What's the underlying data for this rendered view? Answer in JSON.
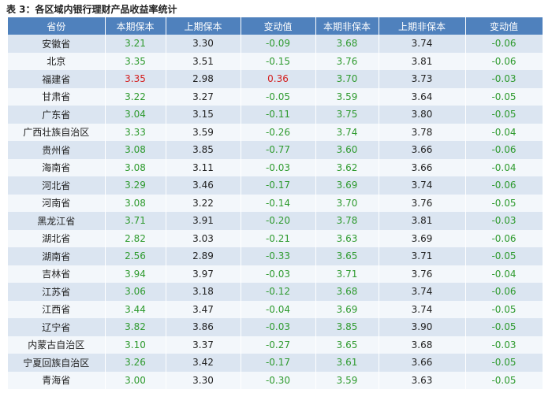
{
  "title": "表 3：各区域内银行理财产品收益率统计",
  "table": {
    "headers": [
      "省份",
      "本期保本",
      "上期保本",
      "变动值",
      "本期非保本",
      "上期非保本",
      "变动值"
    ],
    "rows": [
      [
        "安徽省",
        "3.21",
        "3.30",
        "-0.09",
        "3.68",
        "3.74",
        "-0.06"
      ],
      [
        "北京",
        "3.35",
        "3.51",
        "-0.15",
        "3.76",
        "3.81",
        "-0.06"
      ],
      [
        "福建省",
        "3.35",
        "2.98",
        "0.36",
        "3.70",
        "3.73",
        "-0.03"
      ],
      [
        "甘肃省",
        "3.22",
        "3.27",
        "-0.05",
        "3.59",
        "3.64",
        "-0.05"
      ],
      [
        "广东省",
        "3.04",
        "3.15",
        "-0.11",
        "3.75",
        "3.80",
        "-0.05"
      ],
      [
        "广西壮族自治区",
        "3.33",
        "3.59",
        "-0.26",
        "3.74",
        "3.78",
        "-0.04"
      ],
      [
        "贵州省",
        "3.08",
        "3.85",
        "-0.77",
        "3.60",
        "3.66",
        "-0.06"
      ],
      [
        "海南省",
        "3.08",
        "3.11",
        "-0.03",
        "3.62",
        "3.66",
        "-0.04"
      ],
      [
        "河北省",
        "3.29",
        "3.46",
        "-0.17",
        "3.69",
        "3.74",
        "-0.06"
      ],
      [
        "河南省",
        "3.08",
        "3.22",
        "-0.14",
        "3.70",
        "3.76",
        "-0.05"
      ],
      [
        "黑龙江省",
        "3.71",
        "3.91",
        "-0.20",
        "3.78",
        "3.81",
        "-0.03"
      ],
      [
        "湖北省",
        "2.82",
        "3.03",
        "-0.21",
        "3.63",
        "3.69",
        "-0.06"
      ],
      [
        "湖南省",
        "2.56",
        "2.89",
        "-0.33",
        "3.65",
        "3.71",
        "-0.05"
      ],
      [
        "吉林省",
        "3.94",
        "3.97",
        "-0.03",
        "3.71",
        "3.76",
        "-0.04"
      ],
      [
        "江苏省",
        "3.06",
        "3.18",
        "-0.12",
        "3.68",
        "3.74",
        "-0.06"
      ],
      [
        "江西省",
        "3.44",
        "3.47",
        "-0.04",
        "3.69",
        "3.74",
        "-0.05"
      ],
      [
        "辽宁省",
        "3.82",
        "3.86",
        "-0.03",
        "3.85",
        "3.90",
        "-0.05"
      ],
      [
        "内蒙古自治区",
        "3.10",
        "3.37",
        "-0.27",
        "3.65",
        "3.68",
        "-0.03"
      ],
      [
        "宁夏回族自治区",
        "3.26",
        "3.42",
        "-0.17",
        "3.61",
        "3.66",
        "-0.05"
      ],
      [
        "青海省",
        "3.00",
        "3.30",
        "-0.30",
        "3.59",
        "3.63",
        "-0.05"
      ]
    ]
  }
}
